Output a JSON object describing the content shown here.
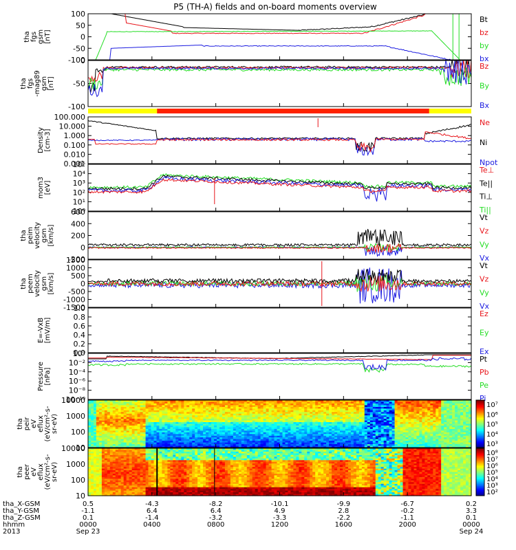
{
  "title": "P5 (TH-A) fields and on-board moments overview",
  "colors": {
    "black": "#000000",
    "red": "#e8141a",
    "green": "#22dd22",
    "blue": "#1a1ae0",
    "yellow": "#ffff00",
    "barRed": "#ff2200"
  },
  "chart_data": [
    {
      "type": "line",
      "ylabel_lines": [
        "tha",
        "fgs",
        "gsm",
        "[nT]"
      ],
      "ylim": [
        -100,
        100
      ],
      "yticks": [
        "100",
        "50",
        "0",
        "-50",
        "-100"
      ],
      "legend": [
        {
          "name": "Bt",
          "color": "#000000"
        },
        {
          "name": "bz",
          "color": "#e8141a"
        },
        {
          "name": "by",
          "color": "#22dd22"
        },
        {
          "name": "bx",
          "color": "#1a1ae0"
        }
      ]
    },
    {
      "type": "line",
      "ylabel_lines": [
        "tha",
        "fgs",
        "-mag89",
        "gsm",
        "[nT]"
      ],
      "ylim": [
        -120,
        20
      ],
      "yticks": [
        "0",
        "-50",
        "-100"
      ],
      "legend": [
        {
          "name": "Bz",
          "color": "#e8141a"
        },
        {
          "name": "By",
          "color": "#22dd22"
        },
        {
          "name": "Bx",
          "color": "#1a1ae0"
        }
      ]
    },
    {
      "type": "line",
      "ylabel_lines": [
        "Density",
        "[cm-3]"
      ],
      "scale": "log",
      "yticks": [
        "100.000",
        "10.000",
        "1.000",
        "0.100",
        "0.010",
        "0.001"
      ],
      "legend": [
        {
          "name": "Ne",
          "color": "#e8141a"
        },
        {
          "name": "Ni",
          "color": "#000000"
        },
        {
          "name": "Npot",
          "color": "#1a1ae0"
        }
      ]
    },
    {
      "type": "line",
      "ylabel_lines": [
        "mom3",
        "[eV]"
      ],
      "scale": "log",
      "yticks": [
        "10⁵",
        "10⁴",
        "10³",
        "10²",
        "10¹",
        "10⁰"
      ],
      "legend": [
        {
          "name": "Te⊥",
          "color": "#e8141a"
        },
        {
          "name": "Te||",
          "color": "#000000"
        },
        {
          "name": "Ti⊥",
          "color": "#000000"
        },
        {
          "name": "Ti||",
          "color": "#22dd22"
        }
      ]
    },
    {
      "type": "line",
      "ylabel_lines": [
        "tha",
        "peim",
        "velocity",
        "gsm",
        "[km/s]"
      ],
      "ylim": [
        -200,
        600
      ],
      "yticks": [
        "600",
        "400",
        "200",
        "0",
        "-200"
      ],
      "legend": [
        {
          "name": "Vt",
          "color": "#000000"
        },
        {
          "name": "Vz",
          "color": "#e8141a"
        },
        {
          "name": "Vy",
          "color": "#22dd22"
        },
        {
          "name": "Vx",
          "color": "#1a1ae0"
        }
      ]
    },
    {
      "type": "line",
      "ylabel_lines": [
        "tha",
        "peem",
        "velocity",
        "gsm",
        "[km/s]"
      ],
      "ylim": [
        -1500,
        1500
      ],
      "yticks": [
        "1500",
        "1000",
        "500",
        "0",
        "-500",
        "-1000",
        "-1500"
      ],
      "legend": [
        {
          "name": "Vt",
          "color": "#000000"
        },
        {
          "name": "Vz",
          "color": "#e8141a"
        },
        {
          "name": "Vy",
          "color": "#22dd22"
        },
        {
          "name": "Vx",
          "color": "#1a1ae0"
        }
      ]
    },
    {
      "type": "line",
      "ylabel_lines": [
        "E=-VxB",
        "[mV/m]"
      ],
      "ylim": [
        0,
        1.0
      ],
      "yticks": [
        "1.0",
        "0.8",
        "0.6",
        "0.4",
        "0.2",
        "0.0"
      ],
      "legend": [
        {
          "name": "Ez",
          "color": "#e8141a"
        },
        {
          "name": "Ey",
          "color": "#22dd22"
        },
        {
          "name": "Ex",
          "color": "#1a1ae0"
        }
      ]
    },
    {
      "type": "line",
      "ylabel_lines": [
        "Pressure",
        "[nPa]"
      ],
      "scale": "log",
      "yticks": [
        "10⁰",
        "10⁻²",
        "10⁻⁴",
        "10⁻⁶",
        "10⁻⁸",
        "10⁻¹⁰"
      ],
      "legend": [
        {
          "name": "Pt",
          "color": "#000000"
        },
        {
          "name": "Pb",
          "color": "#e8141a"
        },
        {
          "name": "Pe",
          "color": "#22dd22"
        },
        {
          "name": "Pi",
          "color": "#1a1ae0"
        }
      ]
    },
    {
      "type": "heatmap",
      "ylabel_lines": [
        "tha",
        "peir",
        "eV",
        "eflux",
        "(eV/cm²-s-",
        "sr-eV)"
      ],
      "scale": "log",
      "yticks": [
        "10000",
        "1000",
        "100",
        "10"
      ],
      "colorbar_ticks": [
        "10⁷",
        "10⁶",
        "10⁵",
        "10⁴",
        "10³"
      ]
    },
    {
      "type": "heatmap",
      "ylabel_lines": [
        "tha",
        "peer",
        "eV",
        "eflux",
        "(eV/cm²-s-",
        "sr-eV)"
      ],
      "scale": "log",
      "yticks": [
        "10000",
        "1000",
        "100",
        "10"
      ],
      "colorbar_ticks": [
        "10⁸",
        "10⁷",
        "10⁶",
        "10⁵",
        "10⁴",
        "10³",
        "10²"
      ]
    }
  ],
  "x_axis": {
    "row_labels": [
      "tha_X-GSM",
      "tha_Y-GSM",
      "tha_Z-GSM",
      "hhmm",
      "2013"
    ],
    "columns": [
      {
        "x": "-",
        "vals": [
          "0.5",
          "-1.1",
          "0.1",
          "0000",
          "Sep 23"
        ]
      },
      {
        "x": "-",
        "vals": [
          "-4.3",
          "6.4",
          "-1.4",
          "0400",
          ""
        ]
      },
      {
        "x": "-",
        "vals": [
          "-8.2",
          "6.4",
          "-3.2",
          "0800",
          ""
        ]
      },
      {
        "x": "-",
        "vals": [
          "-10.1",
          "4.9",
          "-3.3",
          "1200",
          ""
        ]
      },
      {
        "x": "-",
        "vals": [
          "-9.9",
          "2.8",
          "-2.2",
          "1600",
          ""
        ]
      },
      {
        "x": "-",
        "vals": [
          "-6.7",
          "-0.2",
          "-1.1",
          "2000",
          ""
        ]
      },
      {
        "x": "-",
        "vals": [
          "0.2",
          "3.3",
          "0.1",
          "0000",
          "Sep 24"
        ]
      }
    ]
  }
}
